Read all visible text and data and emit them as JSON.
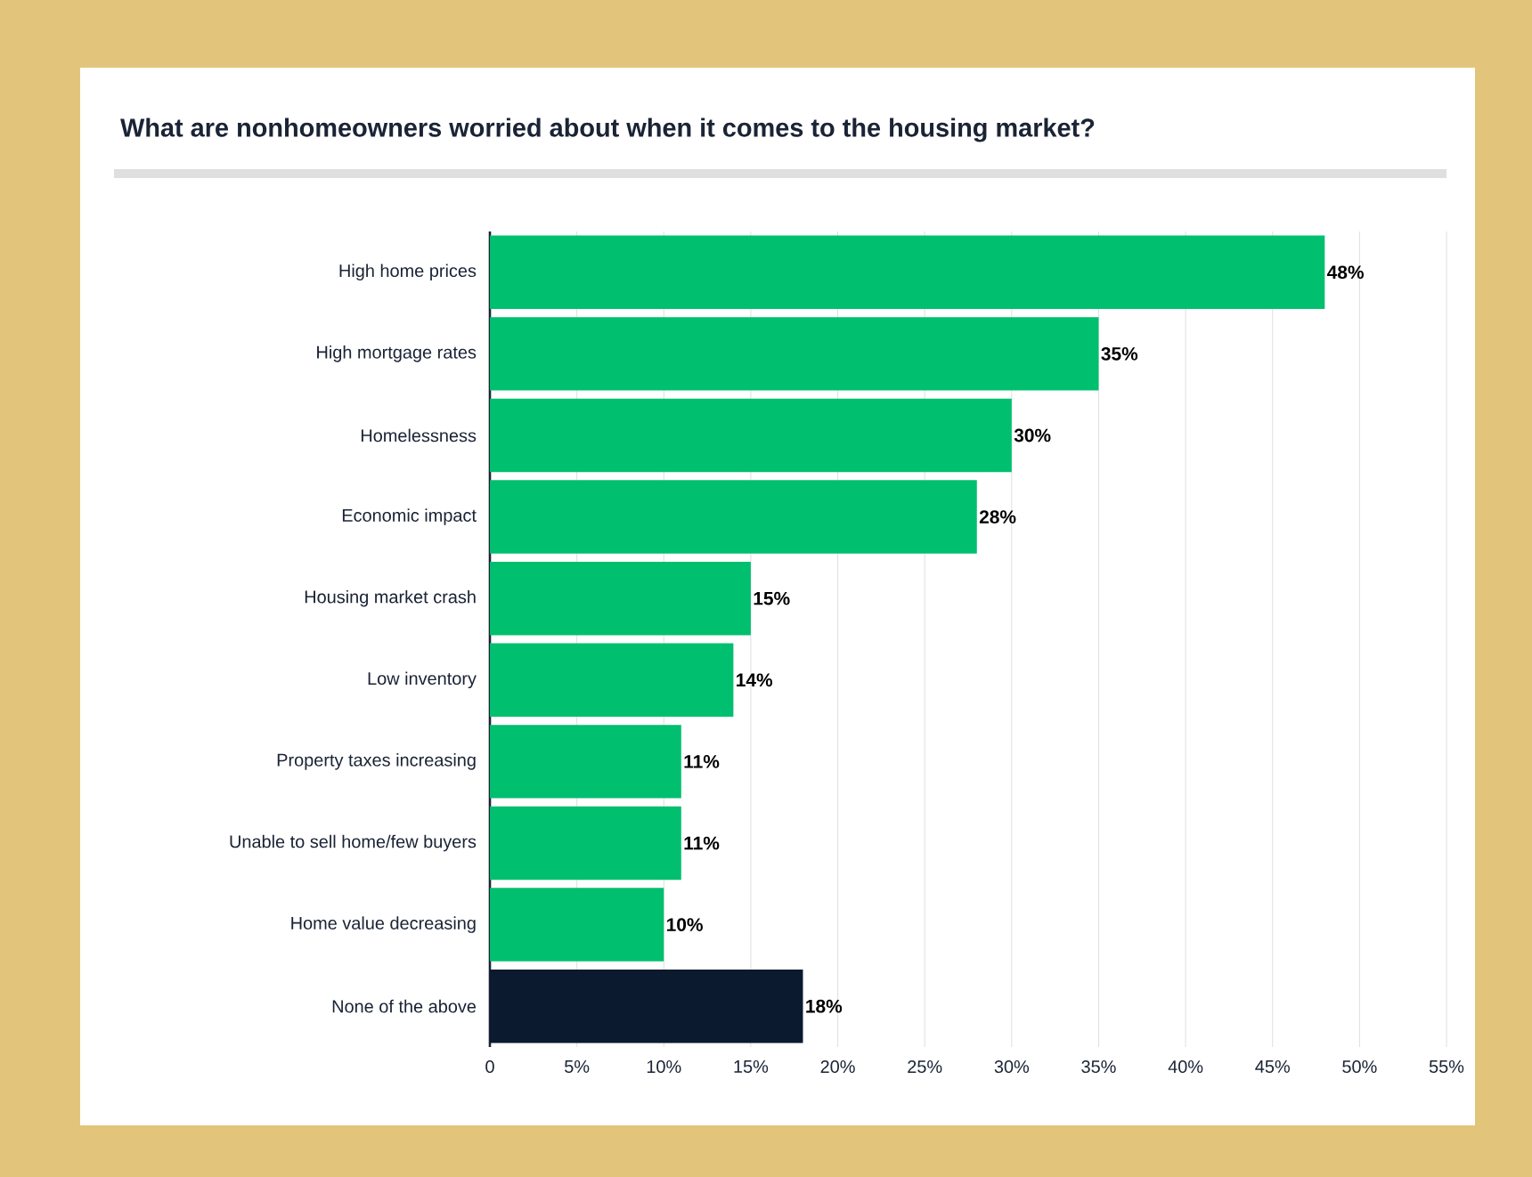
{
  "chart_data": {
    "type": "bar",
    "orientation": "horizontal",
    "title": "What are nonhomeowners worried about when it comes to the housing market?",
    "categories": [
      "High home prices",
      "High mortgage rates",
      "Homelessness",
      "Economic impact",
      "Housing market crash",
      "Low inventory",
      "Property taxes increasing",
      "Unable to sell home/few buyers",
      "Home value decreasing",
      "None of the above"
    ],
    "values": [
      48,
      35,
      30,
      28,
      15,
      14,
      11,
      11,
      10,
      18
    ],
    "value_labels": [
      "48%",
      "35%",
      "30%",
      "28%",
      "15%",
      "14%",
      "11%",
      "11%",
      "10%",
      "18%"
    ],
    "colors": [
      "#00bf6f",
      "#00bf6f",
      "#00bf6f",
      "#00bf6f",
      "#00bf6f",
      "#00bf6f",
      "#00bf6f",
      "#00bf6f",
      "#00bf6f",
      "#0b1a2e"
    ],
    "xlim": [
      0,
      55
    ],
    "xticks": [
      0,
      {
        "value": 5,
        "label": "5%"
      },
      {
        "value": 10,
        "label": "10%"
      },
      {
        "value": 15,
        "label": "15%"
      },
      {
        "value": 20,
        "label": "20%"
      },
      {
        "value": 25,
        "label": "25%"
      },
      {
        "value": 30,
        "label": "30%"
      },
      {
        "value": 35,
        "label": "35%"
      },
      {
        "value": 40,
        "label": "40%"
      },
      {
        "value": 45,
        "label": "45%"
      },
      {
        "value": 50,
        "label": "50%"
      },
      {
        "value": 55,
        "label": "55%"
      }
    ],
    "grid": "x"
  }
}
